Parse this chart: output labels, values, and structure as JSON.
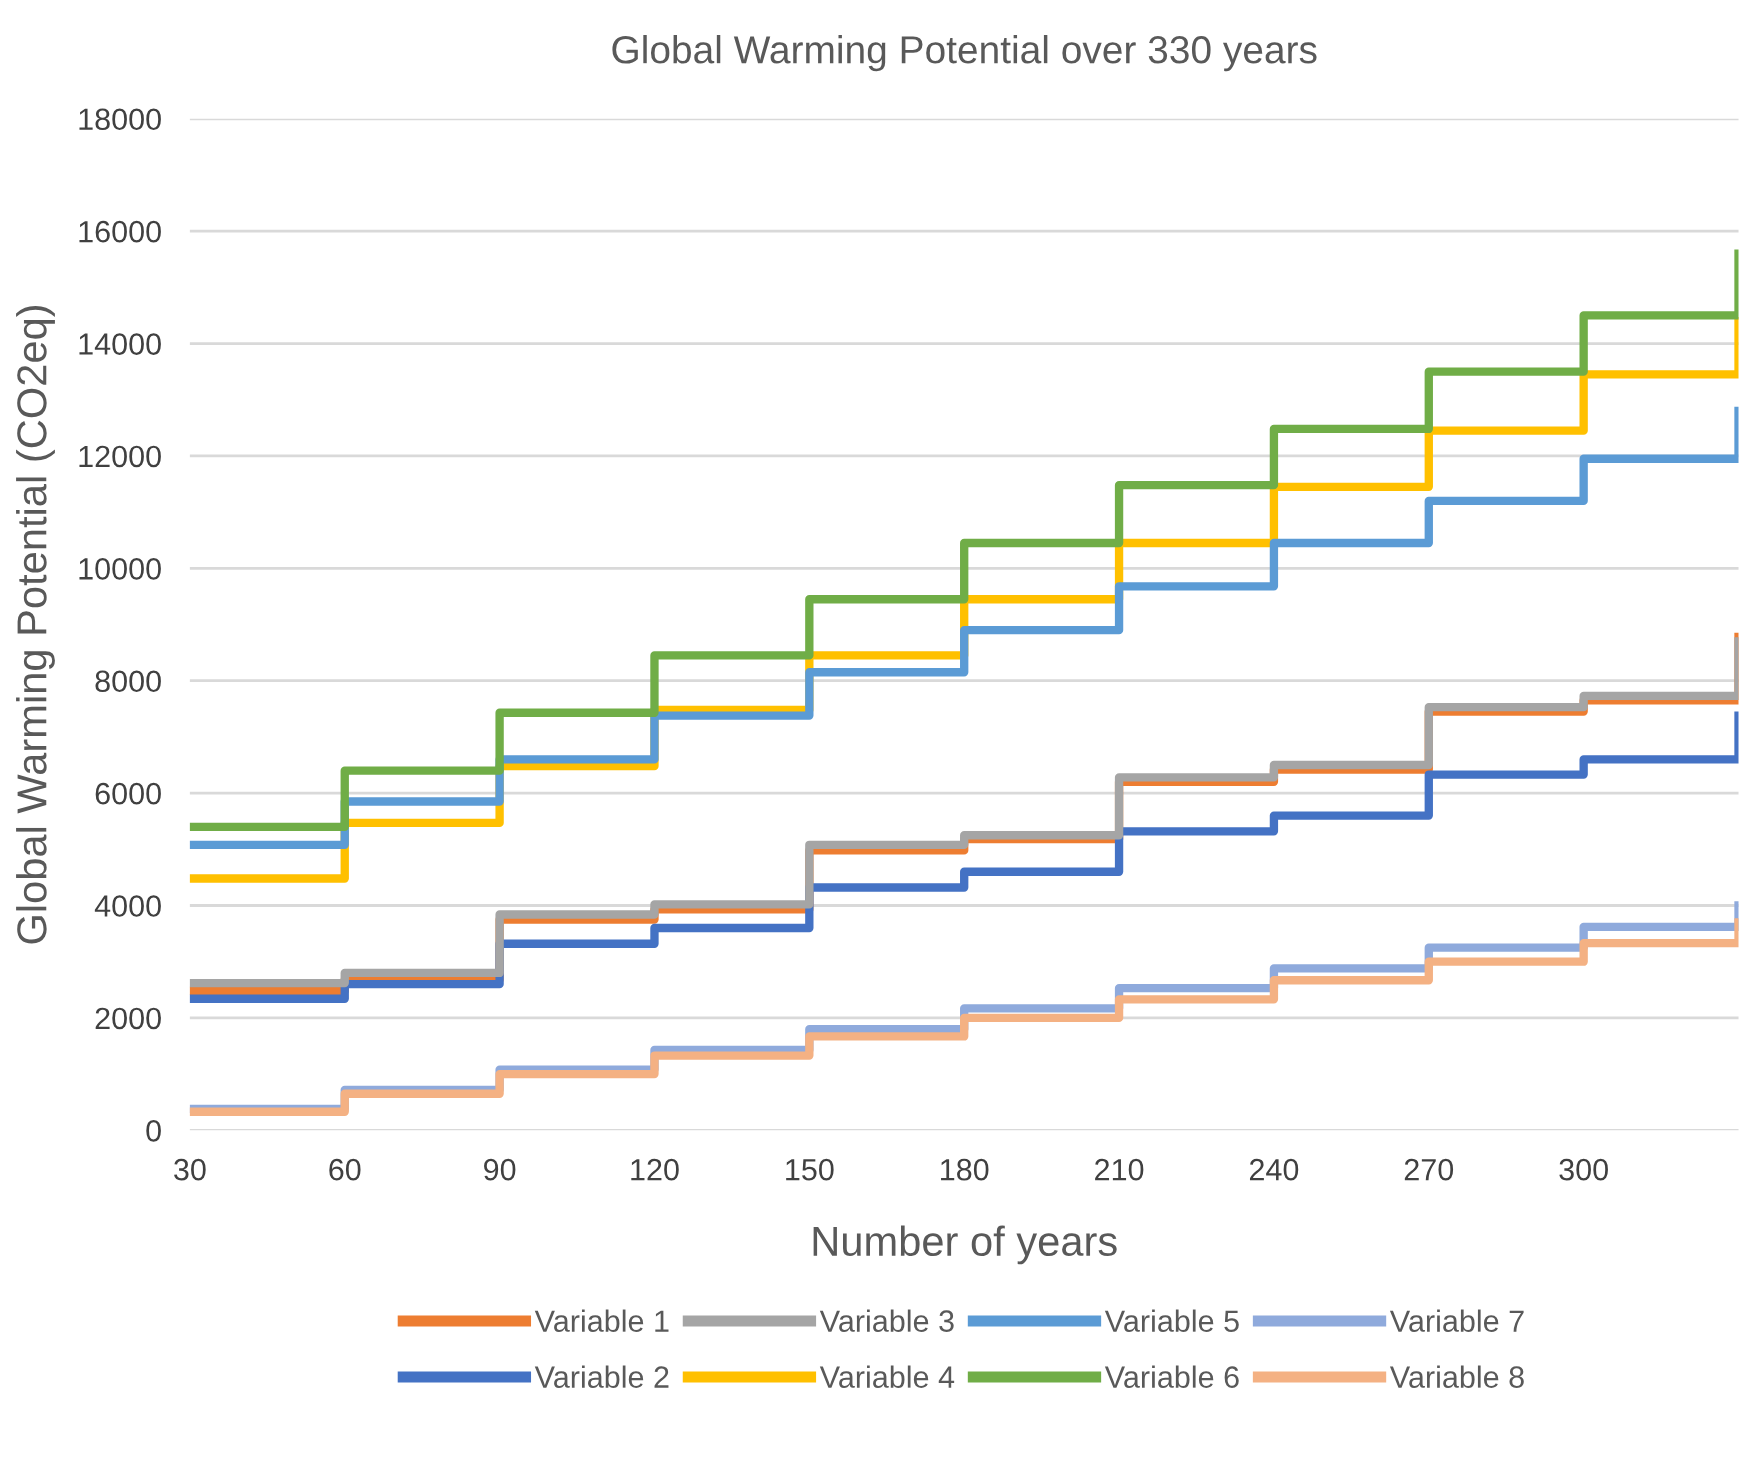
{
  "chart_data": {
    "type": "step",
    "title": "Global Warming Potential over 330 years",
    "xlabel": "Number of years",
    "ylabel": "Global Warming Potential (CO2eq)",
    "x": [
      30,
      60,
      90,
      120,
      150,
      180,
      210,
      240,
      270,
      300,
      330
    ],
    "xlim": [
      30,
      330
    ],
    "xticks": [
      30,
      60,
      90,
      120,
      150,
      180,
      210,
      240,
      270,
      300
    ],
    "ylim": [
      0,
      18000
    ],
    "yticks": [
      0,
      2000,
      4000,
      6000,
      8000,
      10000,
      12000,
      14000,
      16000,
      18000
    ],
    "grid": "y",
    "legend": "bottom",
    "line_style": "solid",
    "marker": "none",
    "series": [
      {
        "name": "Variable 1",
        "color": "#ed7d31",
        "values": [
          2480,
          2680,
          3750,
          3930,
          4980,
          5180,
          6200,
          6420,
          7450,
          7650,
          8780
        ]
      },
      {
        "name": "Variable 2",
        "color": "#4472c4",
        "values": [
          2340,
          2600,
          3320,
          3600,
          4320,
          4600,
          5320,
          5600,
          6330,
          6600,
          7380
        ]
      },
      {
        "name": "Variable 3",
        "color": "#a5a5a5",
        "values": [
          2620,
          2800,
          3840,
          4020,
          5080,
          5250,
          6280,
          6500,
          7530,
          7730,
          8700
        ]
      },
      {
        "name": "Variable 4",
        "color": "#ffc000",
        "values": [
          4480,
          5470,
          6480,
          7480,
          8450,
          9450,
          10450,
          11450,
          12450,
          13450,
          14400
        ]
      },
      {
        "name": "Variable 5",
        "color": "#5b9bd5",
        "values": [
          5080,
          5850,
          6600,
          7380,
          8150,
          8900,
          9680,
          10450,
          11200,
          11950,
          12800
        ]
      },
      {
        "name": "Variable 6",
        "color": "#70ad47",
        "values": [
          5400,
          6400,
          7430,
          8450,
          9450,
          10450,
          11480,
          12480,
          13500,
          14500,
          15600
        ]
      },
      {
        "name": "Variable 7",
        "color": "#8faadc",
        "values": [
          380,
          720,
          1080,
          1430,
          1800,
          2170,
          2530,
          2880,
          3250,
          3620,
          4000
        ]
      },
      {
        "name": "Variable 8",
        "color": "#f4b183",
        "values": [
          330,
          650,
          1000,
          1330,
          1670,
          2000,
          2330,
          2670,
          3000,
          3330,
          3700
        ]
      }
    ]
  }
}
